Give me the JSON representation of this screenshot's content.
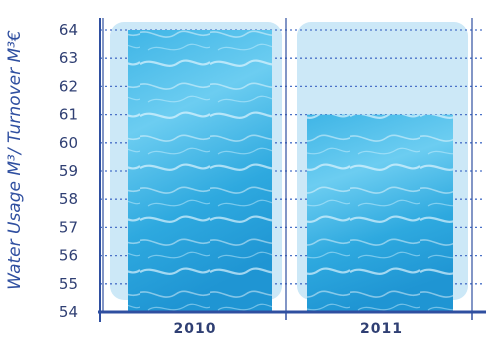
{
  "chart_data": {
    "type": "bar",
    "categories": [
      "2010",
      "2011"
    ],
    "values": [
      64,
      61
    ],
    "ylabel": "Water Usage M³/ Turnover M³€",
    "ylim": [
      54,
      64
    ],
    "yticks": [
      54,
      55,
      56,
      57,
      58,
      59,
      60,
      61,
      62,
      63,
      64
    ],
    "grid": true
  },
  "colors": {
    "axis": "#2f4fa0",
    "tick_text": "#2f3f73",
    "ylabel": "#2f4fa0",
    "grid": "#4a72c8",
    "panel": "#cce8f7",
    "water_light": "#9fe0f7",
    "water_mid": "#4fc0ea",
    "water_deep": "#1c9bd8"
  }
}
